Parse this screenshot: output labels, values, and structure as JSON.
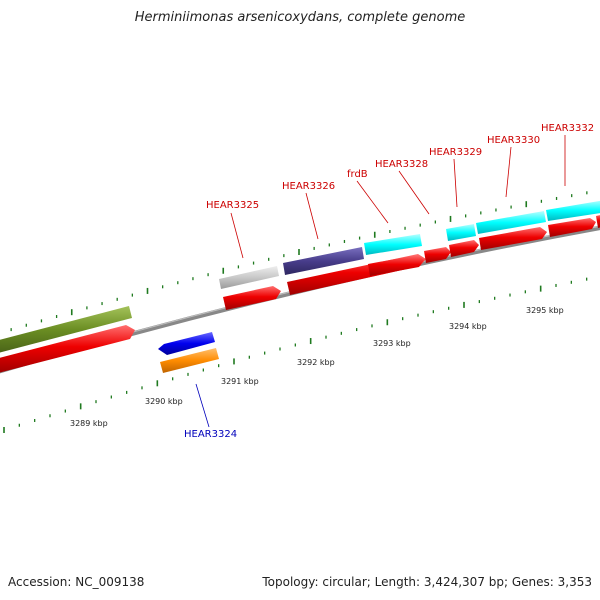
{
  "map": {
    "title": "Herminiimonas arsenicoxydans, complete genome",
    "accession": "Accession: NC_009138",
    "summary": "Topology: circular; Length: 3,424,307 bp; Genes: 3,353",
    "kbp_labels": [
      "3289 kbp",
      "3290 kbp",
      "3291 kbp",
      "3292 kbp",
      "3293 kbp",
      "3294 kbp",
      "3295 kbp"
    ],
    "gene_labels": [
      {
        "name": "HEAR3324",
        "strand": "reverse"
      },
      {
        "name": "HEAR3325",
        "strand": "forward"
      },
      {
        "name": "HEAR3326",
        "strand": "forward"
      },
      {
        "name": "frdB",
        "strand": "forward"
      },
      {
        "name": "HEAR3328",
        "strand": "forward"
      },
      {
        "name": "HEAR3329",
        "strand": "forward"
      },
      {
        "name": "HEAR3330",
        "strand": "forward"
      },
      {
        "name": "HEAR3332",
        "strand": "forward"
      }
    ],
    "colors": {
      "cds": "#ee0000",
      "backbone": "#888888",
      "ticks": "#1f7a1f",
      "olive": "#6b8e23",
      "grey": "#c8c8c8",
      "slate": "#483d8b",
      "cyan": "#00ffff",
      "blue": "#0000ee",
      "orange": "#ff8c00"
    }
  }
}
